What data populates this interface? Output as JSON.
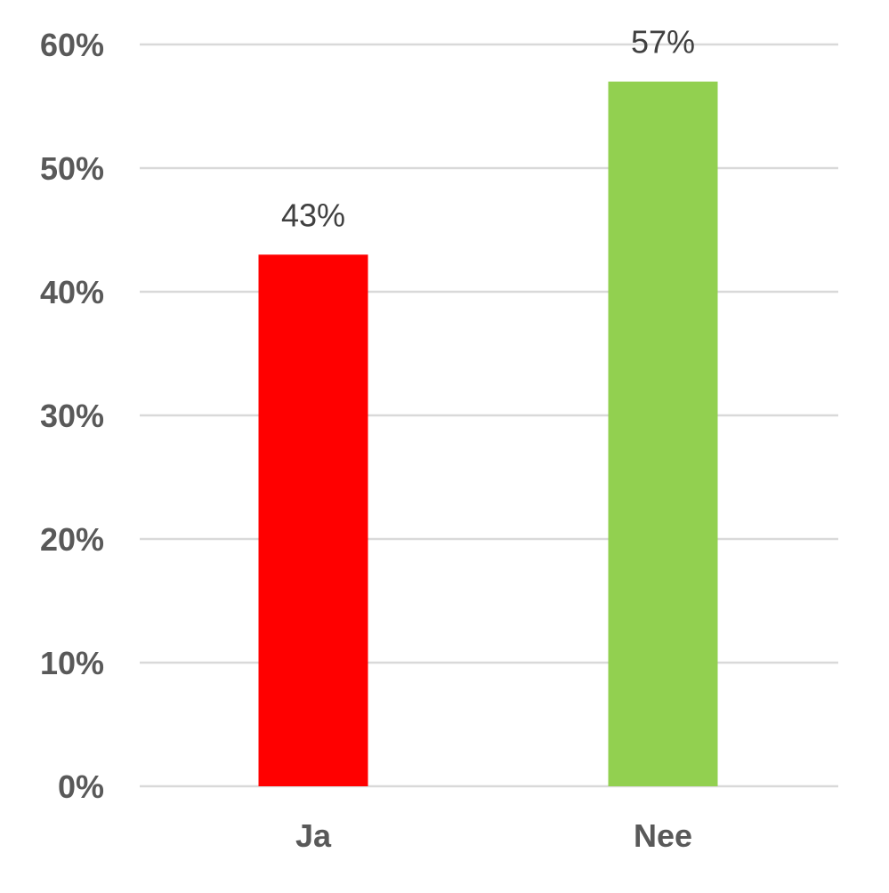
{
  "chart_data": {
    "type": "bar",
    "categories": [
      "Ja",
      "Nee"
    ],
    "values": [
      43,
      57
    ],
    "data_labels": [
      "43%",
      "57%"
    ],
    "bar_colors": [
      "#ff0000",
      "#92d050"
    ],
    "ylim": [
      0,
      60
    ],
    "yticks": [
      0,
      10,
      20,
      30,
      40,
      50,
      60
    ],
    "ytick_labels": [
      "0%",
      "10%",
      "20%",
      "30%",
      "40%",
      "50%",
      "60%"
    ],
    "grid": true,
    "gridline_color": "#d9d9d9",
    "legend": "none",
    "title": "",
    "xlabel": "",
    "ylabel": ""
  }
}
